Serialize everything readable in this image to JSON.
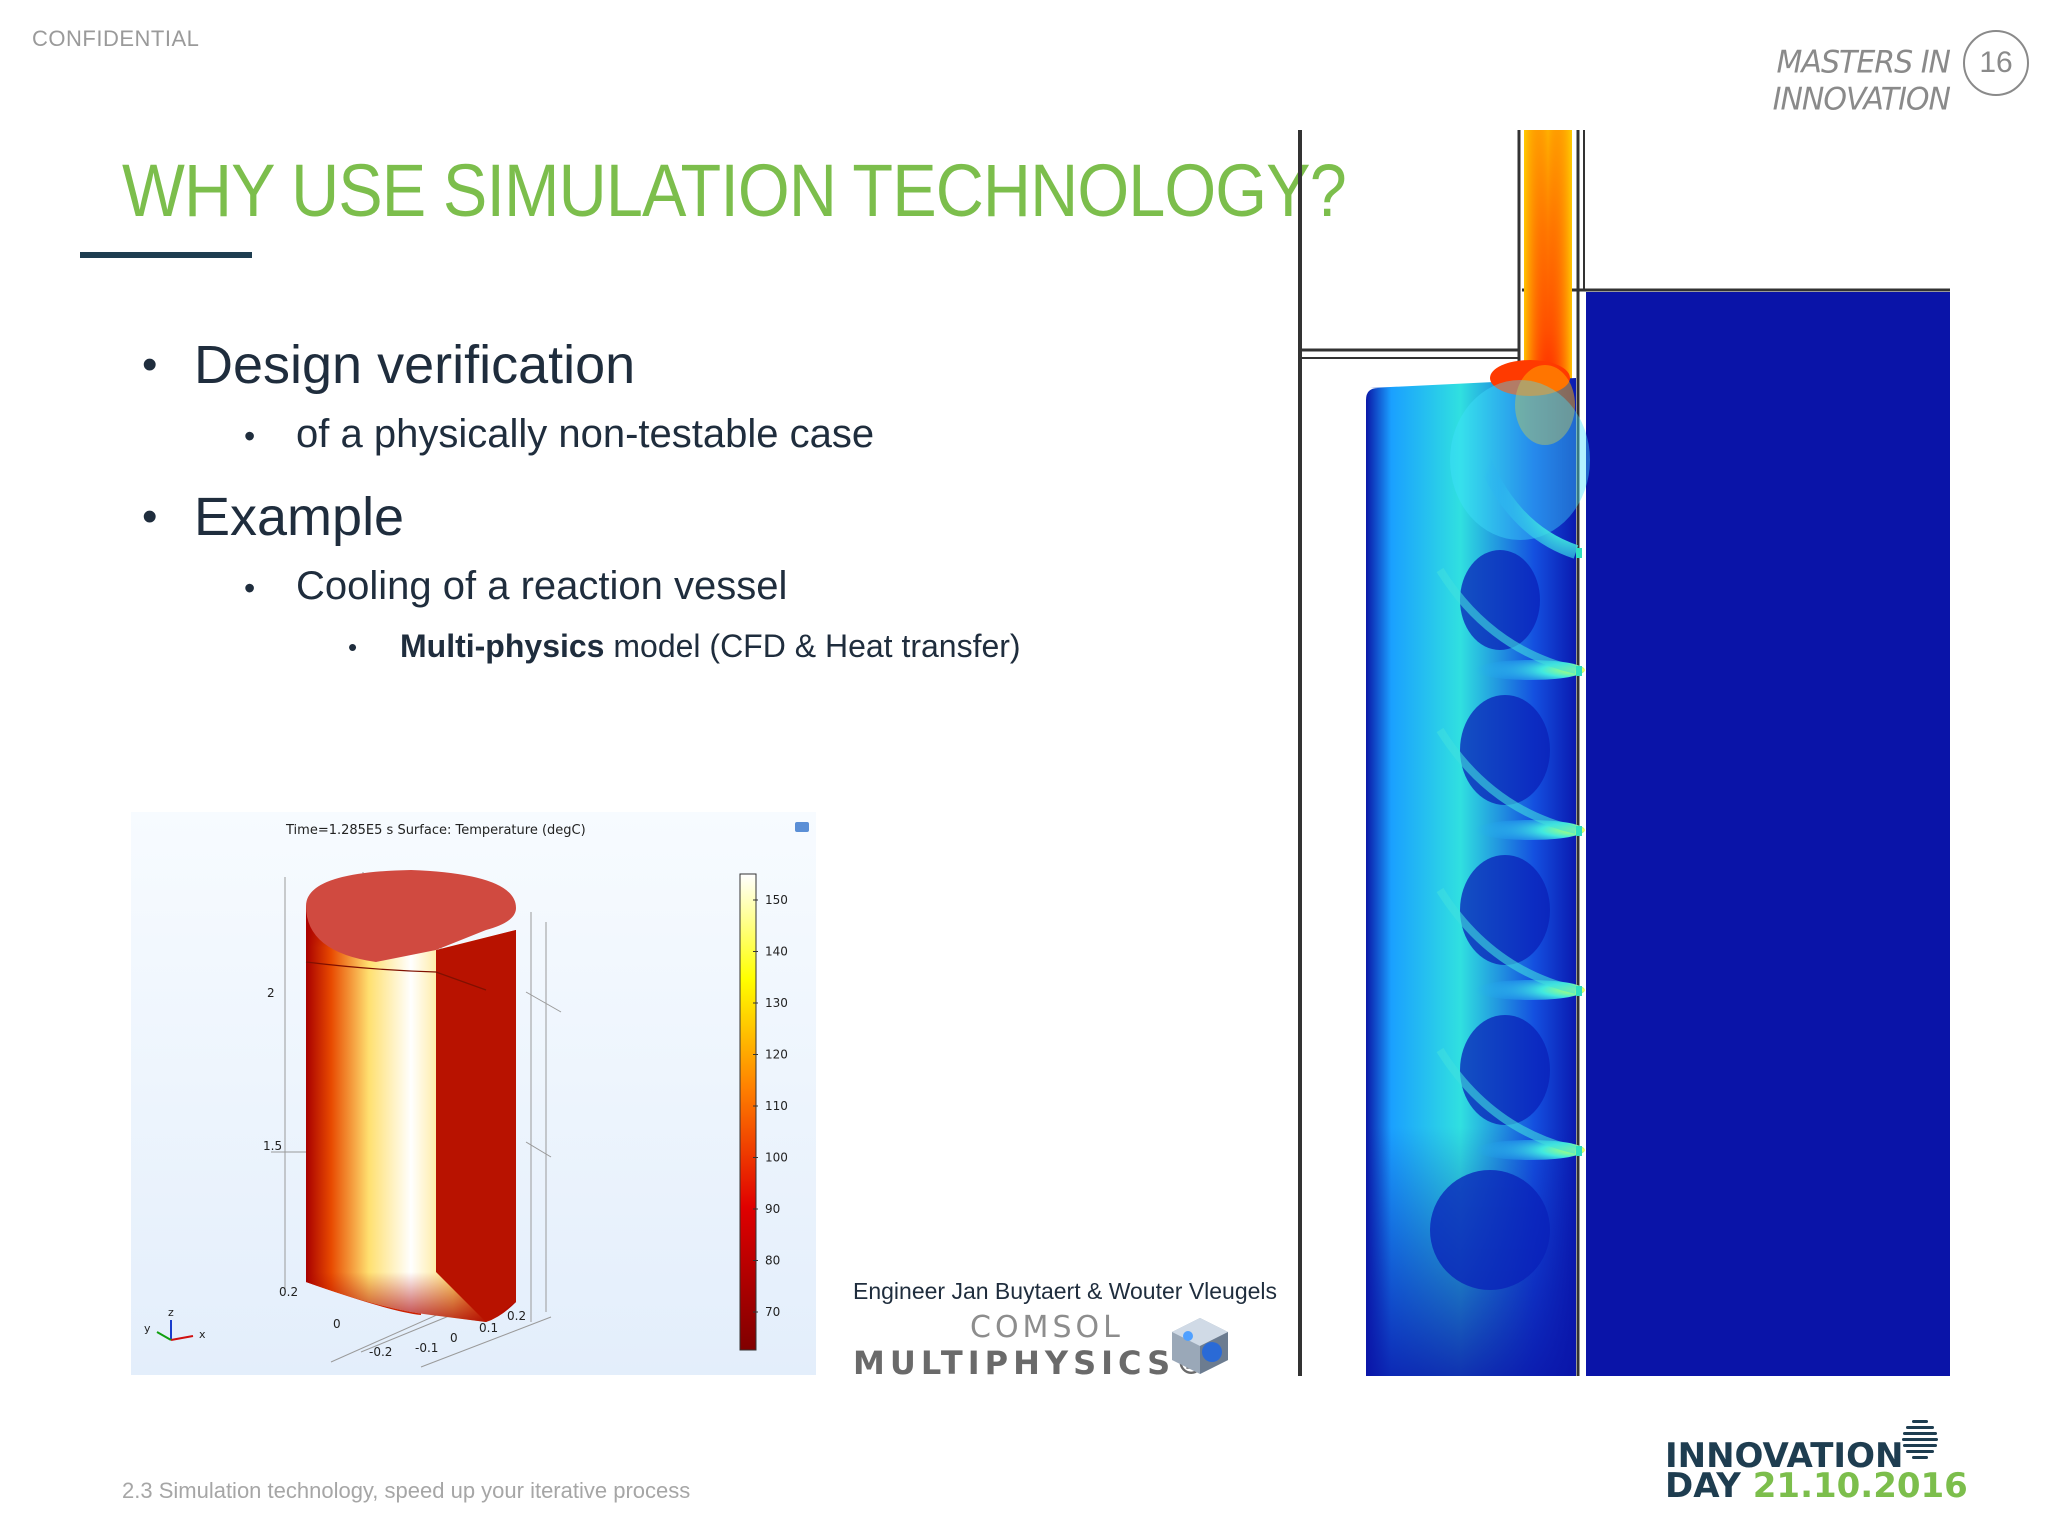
{
  "header": {
    "confidential": "CONFIDENTIAL",
    "brand": "MASTERS IN INNOVATION",
    "page_number": "16"
  },
  "title": "WHY USE SIMULATION TECHNOLOGY?",
  "bullets": {
    "b1": "Design verification",
    "b1_sub": "of a physically non-testable case",
    "b2": "Example",
    "b2_sub": "Cooling of a reaction vessel",
    "b2_sub_sub_bold": "Multi-physics",
    "b2_sub_sub_rest": " model (CFD & Heat transfer)"
  },
  "plot": {
    "header": "Time=1.285E5 s   Surface: Temperature (degC)",
    "z_ticks": [
      "2",
      "1.5",
      "0.2"
    ],
    "x_ticks": [
      "0",
      "-0.2",
      "-0.1",
      "0",
      "0.1",
      "0.2"
    ],
    "colorbar_ticks": [
      "150",
      "140",
      "130",
      "120",
      "110",
      "100",
      "90",
      "80",
      "70"
    ],
    "axis_labels": {
      "z": "z",
      "y": "y",
      "x": "x"
    }
  },
  "credit": "Engineer Jan Buytaert & Wouter Vleugels",
  "comsol": {
    "line1": "COMSOL",
    "line2": "MULTIPHYSICS®"
  },
  "footer": {
    "text": "2.3 Simulation technology, speed up your iterative process",
    "event_line1": "INNOVATION",
    "event_line2_word": "DAY",
    "event_line2_date": "21.10.2016"
  },
  "colors": {
    "title_green": "#7cbe4c",
    "navy": "#1e3d50",
    "cfd_background": "#0a14a8"
  }
}
